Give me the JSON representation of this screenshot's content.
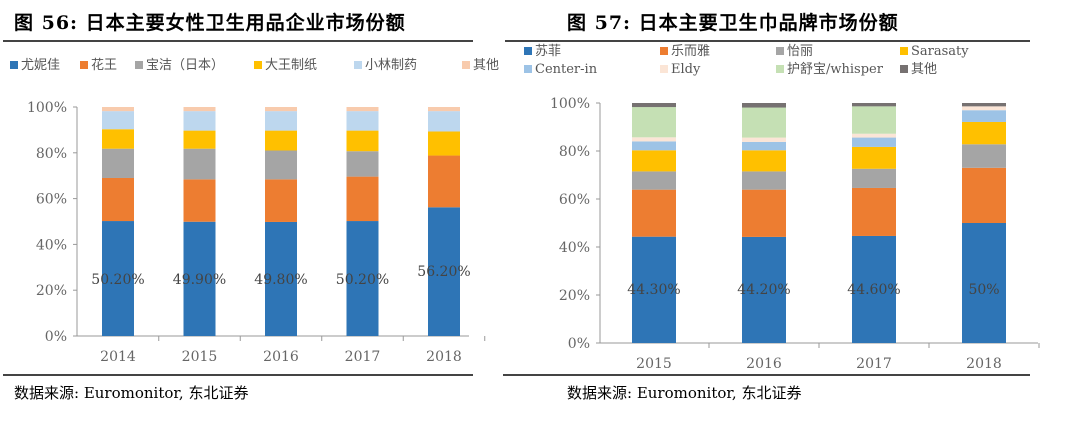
{
  "charts": [
    {
      "title": "图 56: 日本主要女性卫生用品企业市场份额",
      "source": "数据来源: Euromonitor, 东北证券"
    },
    {
      "title": "图 57: 日本主要卫生巾品牌市场份额",
      "source": "数据来源: Euromonitor, 东北证券"
    }
  ],
  "chart_data": [
    {
      "type": "bar",
      "stacked": true,
      "title": "图 56: 日本主要女性卫生用品企业市场份额",
      "categories": [
        "2014",
        "2015",
        "2016",
        "2017",
        "2018"
      ],
      "ylim": [
        0,
        100
      ],
      "yticks": [
        "0%",
        "20%",
        "40%",
        "60%",
        "80%",
        "100%"
      ],
      "legend_position": "top",
      "grid": false,
      "series": [
        {
          "name": "尤妮佳",
          "color": "#2E75B6",
          "values": [
            50.2,
            49.9,
            49.8,
            50.2,
            56.2
          ],
          "labels": [
            "50.20%",
            "49.90%",
            "49.80%",
            "50.20%",
            "56.20%"
          ]
        },
        {
          "name": "花王",
          "color": "#ED7D31",
          "values": [
            18.8,
            18.5,
            18.6,
            19.4,
            22.6
          ]
        },
        {
          "name": "宝洁（日本）",
          "color": "#A5A5A5",
          "values": [
            12.8,
            13.4,
            12.6,
            11.1,
            0
          ]
        },
        {
          "name": "大王制纸",
          "color": "#FFC000",
          "values": [
            8.5,
            7.9,
            8.7,
            9.0,
            10.5
          ]
        },
        {
          "name": "小林制药",
          "color": "#BDD7EE",
          "values": [
            7.9,
            8.5,
            8.5,
            8.5,
            8.9
          ]
        },
        {
          "name": "其他",
          "color": "#F8CBAD",
          "values": [
            1.8,
            1.8,
            1.8,
            1.8,
            1.8
          ]
        }
      ]
    },
    {
      "type": "bar",
      "stacked": true,
      "title": "图 57: 日本主要卫生巾品牌市场份额",
      "categories": [
        "2015",
        "2016",
        "2017",
        "2018"
      ],
      "ylim": [
        0,
        100
      ],
      "yticks": [
        "0%",
        "20%",
        "40%",
        "60%",
        "80%",
        "100%"
      ],
      "legend_position": "top",
      "grid": false,
      "series": [
        {
          "name": "苏菲",
          "color": "#2E75B6",
          "values": [
            44.3,
            44.2,
            44.6,
            50
          ],
          "labels": [
            "44.30%",
            "44.20%",
            "44.60%",
            "50%"
          ]
        },
        {
          "name": "乐而雅",
          "color": "#ED7D31",
          "values": [
            19.6,
            19.7,
            20.0,
            23.0
          ]
        },
        {
          "name": "怡丽",
          "color": "#A5A5A5",
          "values": [
            7.6,
            7.6,
            8.0,
            9.8
          ]
        },
        {
          "name": "Sarasaty",
          "color": "#FFC000",
          "values": [
            8.8,
            8.8,
            9.1,
            9.3
          ]
        },
        {
          "name": "Center-in",
          "color": "#9DC3E6",
          "values": [
            3.7,
            3.5,
            3.9,
            4.9
          ]
        },
        {
          "name": "Eldy",
          "color": "#FBE5D6",
          "values": [
            1.7,
            1.8,
            1.6,
            1.6
          ]
        },
        {
          "name": "护舒宝/whisper",
          "color": "#C5E0B4",
          "values": [
            12.6,
            12.5,
            11.4,
            0
          ]
        },
        {
          "name": "其他",
          "color": "#767171",
          "values": [
            1.7,
            1.9,
            1.4,
            1.4
          ]
        }
      ]
    }
  ]
}
